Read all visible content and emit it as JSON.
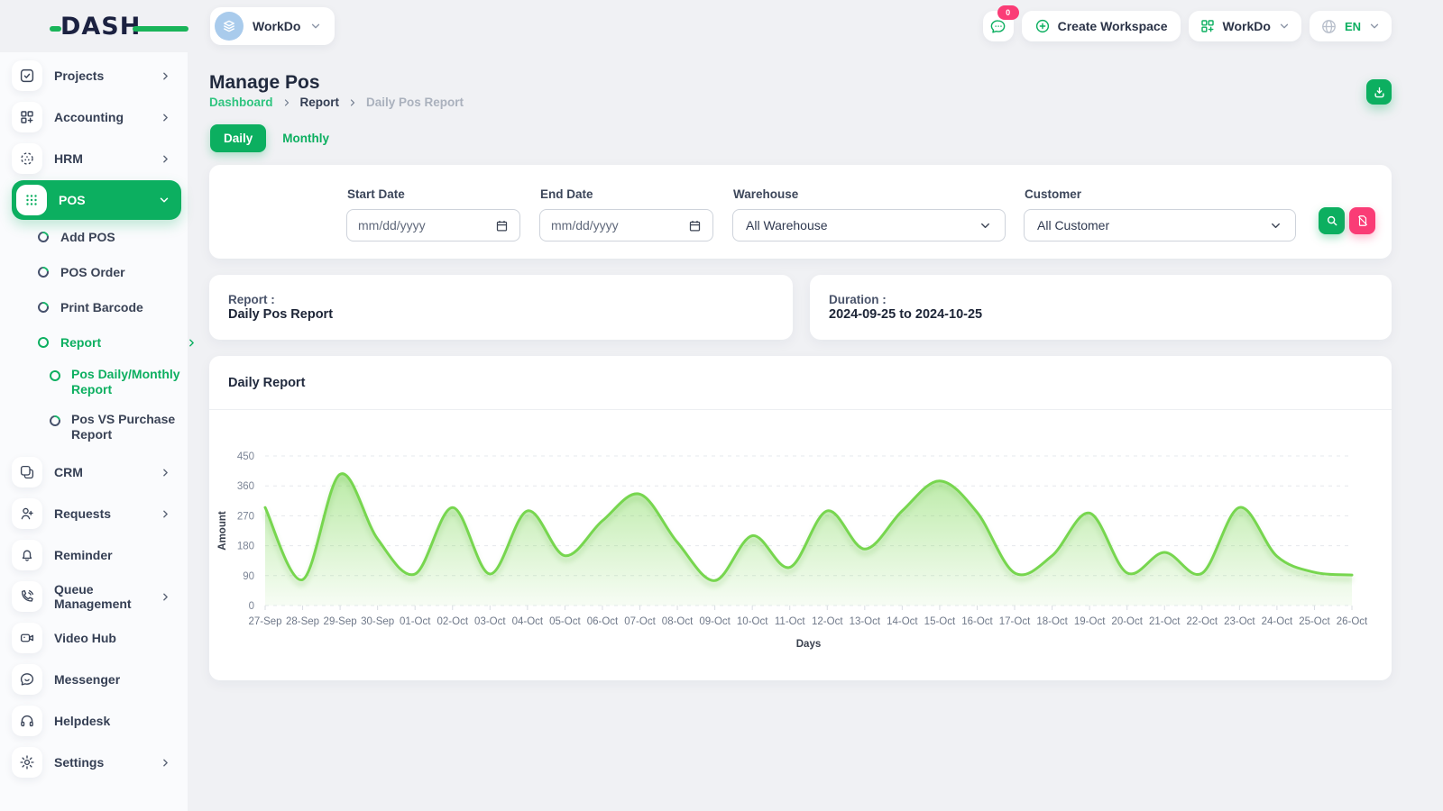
{
  "header": {
    "logo_text": "DASH",
    "workspace_selector": {
      "name": "WorkDo"
    },
    "messages_badge": "0",
    "create_workspace_label": "Create Workspace",
    "account_menu_label": "WorkDo",
    "language": "EN"
  },
  "sidebar": {
    "items": [
      {
        "label": "Projects",
        "icon": "check-square-icon",
        "level": "top",
        "chevron": "right",
        "active": false
      },
      {
        "label": "Accounting",
        "icon": "grid-plus-icon",
        "level": "top",
        "chevron": "right",
        "active": false
      },
      {
        "label": "HRM",
        "icon": "focus-dots-icon",
        "level": "top",
        "chevron": "right",
        "active": false
      },
      {
        "label": "POS",
        "icon": "dots-grid-icon",
        "level": "top",
        "chevron": "down",
        "active": true
      },
      {
        "label": "Add POS",
        "icon": "ring-icon",
        "level": "sub",
        "chevron": "",
        "active": false
      },
      {
        "label": "POS Order",
        "icon": "ring-icon",
        "level": "sub",
        "chevron": "",
        "active": false
      },
      {
        "label": "Print Barcode",
        "icon": "ring-icon",
        "level": "sub",
        "chevron": "",
        "active": false
      },
      {
        "label": "Report",
        "icon": "ring-icon",
        "level": "sub",
        "chevron": "right",
        "active": true
      },
      {
        "label": "Pos Daily/Monthly Report",
        "icon": "ring-icon",
        "level": "sub2",
        "chevron": "",
        "active": true
      },
      {
        "label": "Pos VS Purchase Report",
        "icon": "ring-icon",
        "level": "sub2",
        "chevron": "",
        "active": false
      },
      {
        "label": "CRM",
        "icon": "windows-icon",
        "level": "top",
        "chevron": "right",
        "active": false
      },
      {
        "label": "Requests",
        "icon": "user-plus-icon",
        "level": "top",
        "chevron": "right",
        "active": false
      },
      {
        "label": "Reminder",
        "icon": "bell-icon",
        "level": "top",
        "chevron": "",
        "active": false
      },
      {
        "label": "Queue Management",
        "icon": "phone-volume-icon",
        "level": "top",
        "chevron": "right",
        "active": false
      },
      {
        "label": "Video Hub",
        "icon": "video-camera-icon",
        "level": "top",
        "chevron": "",
        "active": false
      },
      {
        "label": "Messenger",
        "icon": "chat-smile-icon",
        "level": "top",
        "chevron": "",
        "active": false
      },
      {
        "label": "Helpdesk",
        "icon": "headphones-icon",
        "level": "top",
        "chevron": "",
        "active": false
      },
      {
        "label": "Settings",
        "icon": "gear-icon",
        "level": "top",
        "chevron": "right",
        "active": false
      }
    ]
  },
  "page": {
    "title": "Manage Pos",
    "breadcrumb": [
      "Dashboard",
      "Report",
      "Daily Pos Report"
    ],
    "tabs": [
      {
        "label": "Daily",
        "active": true
      },
      {
        "label": "Monthly",
        "active": false
      }
    ]
  },
  "filters": {
    "start_date": {
      "label": "Start Date",
      "placeholder": "mm/dd/yyyy"
    },
    "end_date": {
      "label": "End Date",
      "placeholder": "mm/dd/yyyy"
    },
    "warehouse": {
      "label": "Warehouse",
      "value": "All Warehouse"
    },
    "customer": {
      "label": "Customer",
      "value": "All Customer"
    }
  },
  "summary": {
    "report_label": "Report :",
    "report_value": "Daily Pos Report",
    "duration_label": "Duration :",
    "duration_value": "2024-09-25 to 2024-10-25"
  },
  "chart_card": {
    "title": "Daily Report"
  },
  "chart_data": {
    "type": "area",
    "title": "Daily Report",
    "xlabel": "Days",
    "ylabel": "Amount",
    "ylim": [
      0,
      450
    ],
    "yticks": [
      0,
      90,
      180,
      270,
      360,
      450
    ],
    "grid": true,
    "legend": "none",
    "line_color": "#77d64f",
    "categories": [
      "27-Sep",
      "28-Sep",
      "29-Sep",
      "30-Sep",
      "01-Oct",
      "02-Oct",
      "03-Oct",
      "04-Oct",
      "05-Oct",
      "06-Oct",
      "07-Oct",
      "08-Oct",
      "09-Oct",
      "10-Oct",
      "11-Oct",
      "12-Oct",
      "13-Oct",
      "14-Oct",
      "15-Oct",
      "16-Oct",
      "17-Oct",
      "18-Oct",
      "19-Oct",
      "20-Oct",
      "21-Oct",
      "22-Oct",
      "23-Oct",
      "24-Oct",
      "25-Oct",
      "26-Oct"
    ],
    "values": [
      295,
      78,
      395,
      200,
      95,
      295,
      95,
      285,
      150,
      255,
      335,
      190,
      75,
      210,
      115,
      285,
      170,
      285,
      375,
      280,
      98,
      150,
      278,
      98,
      160,
      97,
      295,
      148,
      100,
      92
    ]
  },
  "colors": {
    "primary": "#0caf60",
    "pink": "#fa3c76",
    "chart_line": "#77d64f",
    "breadcrumb_link": "#2fc47f"
  }
}
